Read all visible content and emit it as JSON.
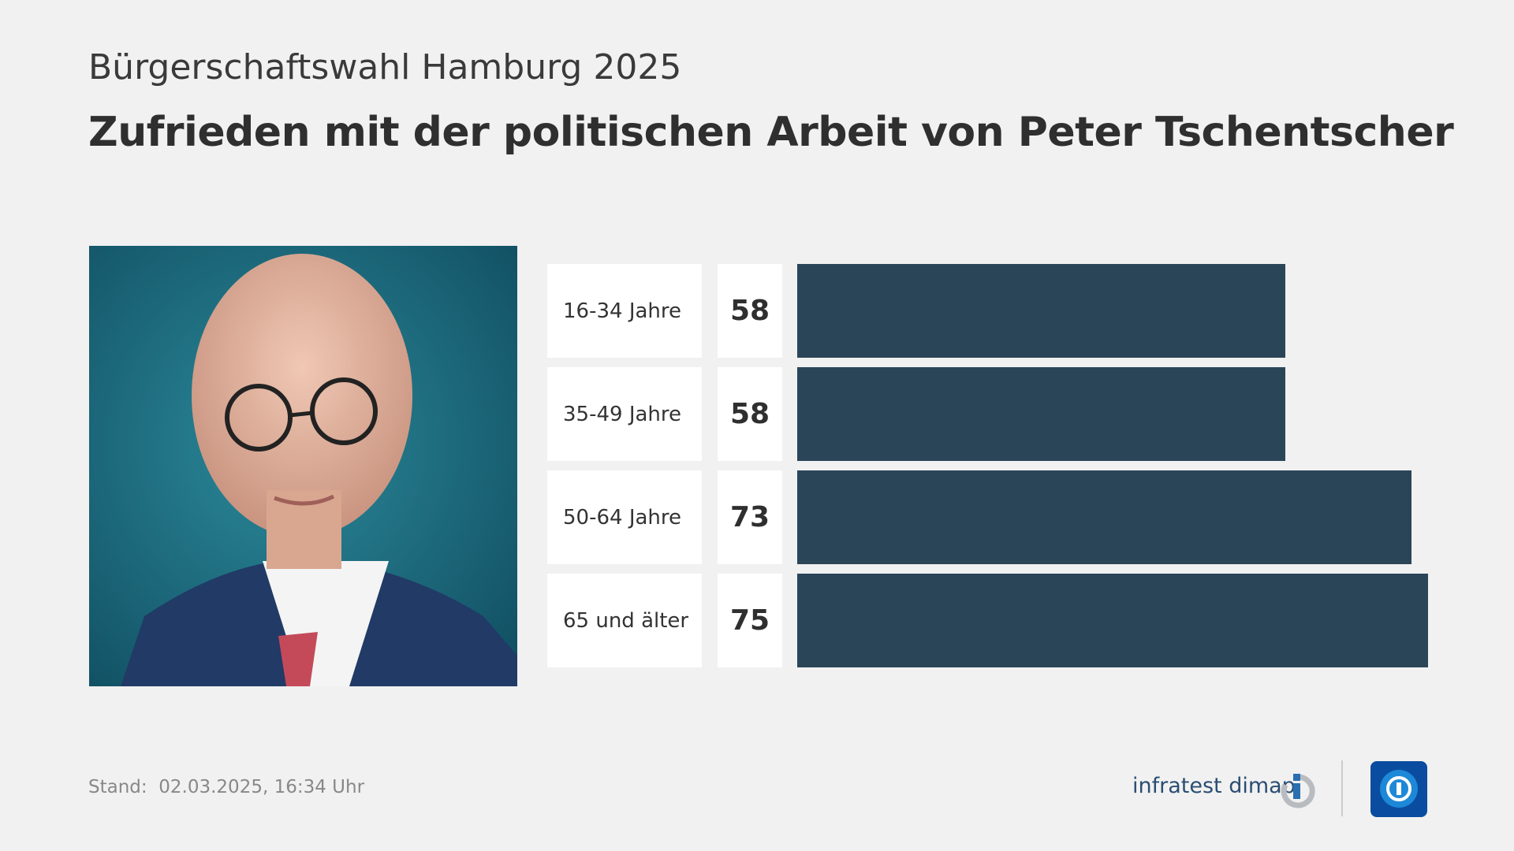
{
  "chart_data": {
    "type": "bar",
    "orientation": "horizontal",
    "subtitle": "Bürgerschaftswahl Hamburg 2025",
    "title": "Zufrieden mit der politischen Arbeit von Peter Tschentscher",
    "categories": [
      "16-34 Jahre",
      "35-49 Jahre",
      "50-64 Jahre",
      "65 und älter"
    ],
    "values": [
      58,
      58,
      73,
      75
    ],
    "color": "#2b4558",
    "footer_label": "Stand:",
    "footer_date": "02.03.2025, 16:34 Uhr",
    "brand": "infratest dimap"
  }
}
